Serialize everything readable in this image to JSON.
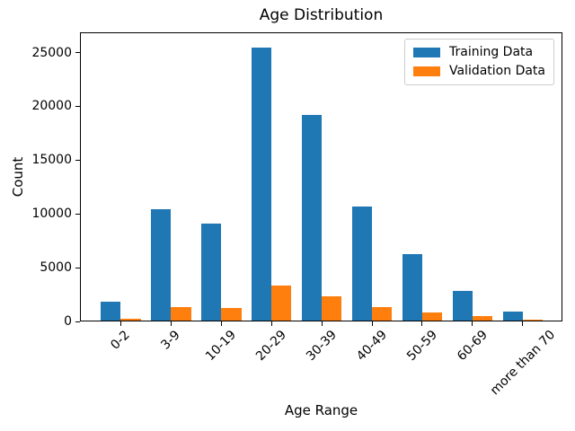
{
  "chart_data": {
    "type": "bar",
    "title": "Age Distribution",
    "xlabel": "Age Range",
    "ylabel": "Count",
    "categories": [
      "0-2",
      "3-9",
      "10-19",
      "20-29",
      "30-39",
      "40-49",
      "50-59",
      "60-69",
      "more than 70"
    ],
    "series": [
      {
        "name": "Training Data",
        "color": "#1f77b4",
        "values": [
          1750,
          10400,
          9050,
          25500,
          19250,
          10700,
          6250,
          2780,
          860
        ]
      },
      {
        "name": "Validation Data",
        "color": "#ff7f0e",
        "values": [
          150,
          1300,
          1150,
          3250,
          2300,
          1300,
          780,
          380,
          100
        ]
      }
    ],
    "ylim": [
      0,
      26880
    ],
    "yticks": [
      0,
      5000,
      10000,
      15000,
      20000,
      25000
    ],
    "xtick_rotation": 45,
    "legend_position": "upper right",
    "grid": false,
    "bar_width_fraction": 0.4,
    "colors": {
      "axis": "#000000",
      "legend_border": "#cccccc",
      "background": "#ffffff"
    }
  }
}
